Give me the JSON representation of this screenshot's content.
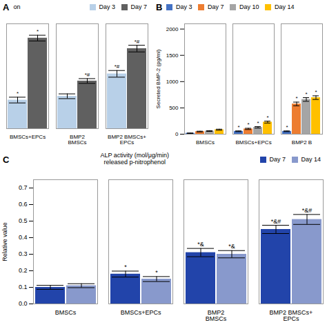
{
  "chart_data": [
    {
      "type": "bar",
      "annotations": [
        "A",
        "on"
      ],
      "categories": [
        "BMSCs+EPCs",
        "BMP2\nBMSCs",
        "BMP2 BMSCs+\nEPCs"
      ],
      "series": [
        {
          "name": "Day 3",
          "color": "#b8d0e8",
          "values": [
            0.6,
            0.68,
            1.15
          ],
          "errors": [
            0.06,
            0.05,
            0.07
          ],
          "annotations": [
            "*",
            null,
            "*#"
          ]
        },
        {
          "name": "Day 7",
          "color": "#606060",
          "values": [
            1.9,
            1.0,
            1.68
          ],
          "errors": [
            0.06,
            0.05,
            0.07
          ],
          "annotations": [
            "*",
            "*#",
            "*#"
          ]
        }
      ],
      "ylim": [
        0,
        2.2
      ],
      "tick_labels": "x",
      "legend": "upper right"
    },
    {
      "type": "bar",
      "annotations": [
        "B"
      ],
      "categories": [
        "BMSCs",
        "BMSCs+EPCs",
        "BMP2 B"
      ],
      "series": [
        {
          "name": "Day 3",
          "color": "#4472c4",
          "values": [
            18,
            55,
            55
          ],
          "errors": [
            4,
            7,
            7
          ],
          "annotations": [
            null,
            "*",
            "*"
          ]
        },
        {
          "name": "Day 7",
          "color": "#ed7d31",
          "values": [
            50,
            100,
            575
          ],
          "errors": [
            7,
            12,
            35
          ],
          "annotations": [
            null,
            "*",
            "*"
          ]
        },
        {
          "name": "Day 10",
          "color": "#a5a5a5",
          "values": [
            60,
            130,
            660
          ],
          "errors": [
            7,
            14,
            35
          ],
          "annotations": [
            null,
            "*",
            "*"
          ]
        },
        {
          "name": "Day 14",
          "color": "#ffc000",
          "values": [
            85,
            230,
            695
          ],
          "errors": [
            10,
            18,
            35
          ],
          "annotations": [
            null,
            "*",
            "*"
          ]
        }
      ],
      "ylabel": "Secreted BMP-2 (pg/ml)",
      "ylim": [
        0,
        2100
      ],
      "yticks": [
        0,
        500,
        1000,
        1500,
        2000
      ],
      "legend": "upper left"
    },
    {
      "type": "bar",
      "annotations": [
        "C"
      ],
      "title": "ALP activity (mol/μg/min)\nreleased p-nitrophenol",
      "categories": [
        "BMSCs",
        "BMSCs+EPCs",
        "BMP2\nBMSCs",
        "BMP2 BMSCs+\nEPCs"
      ],
      "series": [
        {
          "name": "Day 7",
          "color": "#2244aa",
          "values": [
            0.1,
            0.18,
            0.31,
            0.45
          ],
          "errors": [
            0.012,
            0.018,
            0.025,
            0.025
          ],
          "annotations": [
            null,
            "*",
            "*&",
            "*&#"
          ]
        },
        {
          "name": "Day 14",
          "color": "#8899cc",
          "values": [
            0.11,
            0.15,
            0.3,
            0.51
          ],
          "errors": [
            0.012,
            0.015,
            0.022,
            0.03
          ],
          "annotations": [
            null,
            "*",
            "*&",
            "*&#"
          ]
        }
      ],
      "ylabel": "Relative value",
      "ylim": [
        0,
        0.75
      ],
      "yticks": [
        {
          "value": 0.0,
          "label": "0.0"
        },
        0.1,
        0.2,
        0.3,
        0.4,
        0.5,
        0.6,
        0.7
      ],
      "legend": "upper right"
    }
  ]
}
